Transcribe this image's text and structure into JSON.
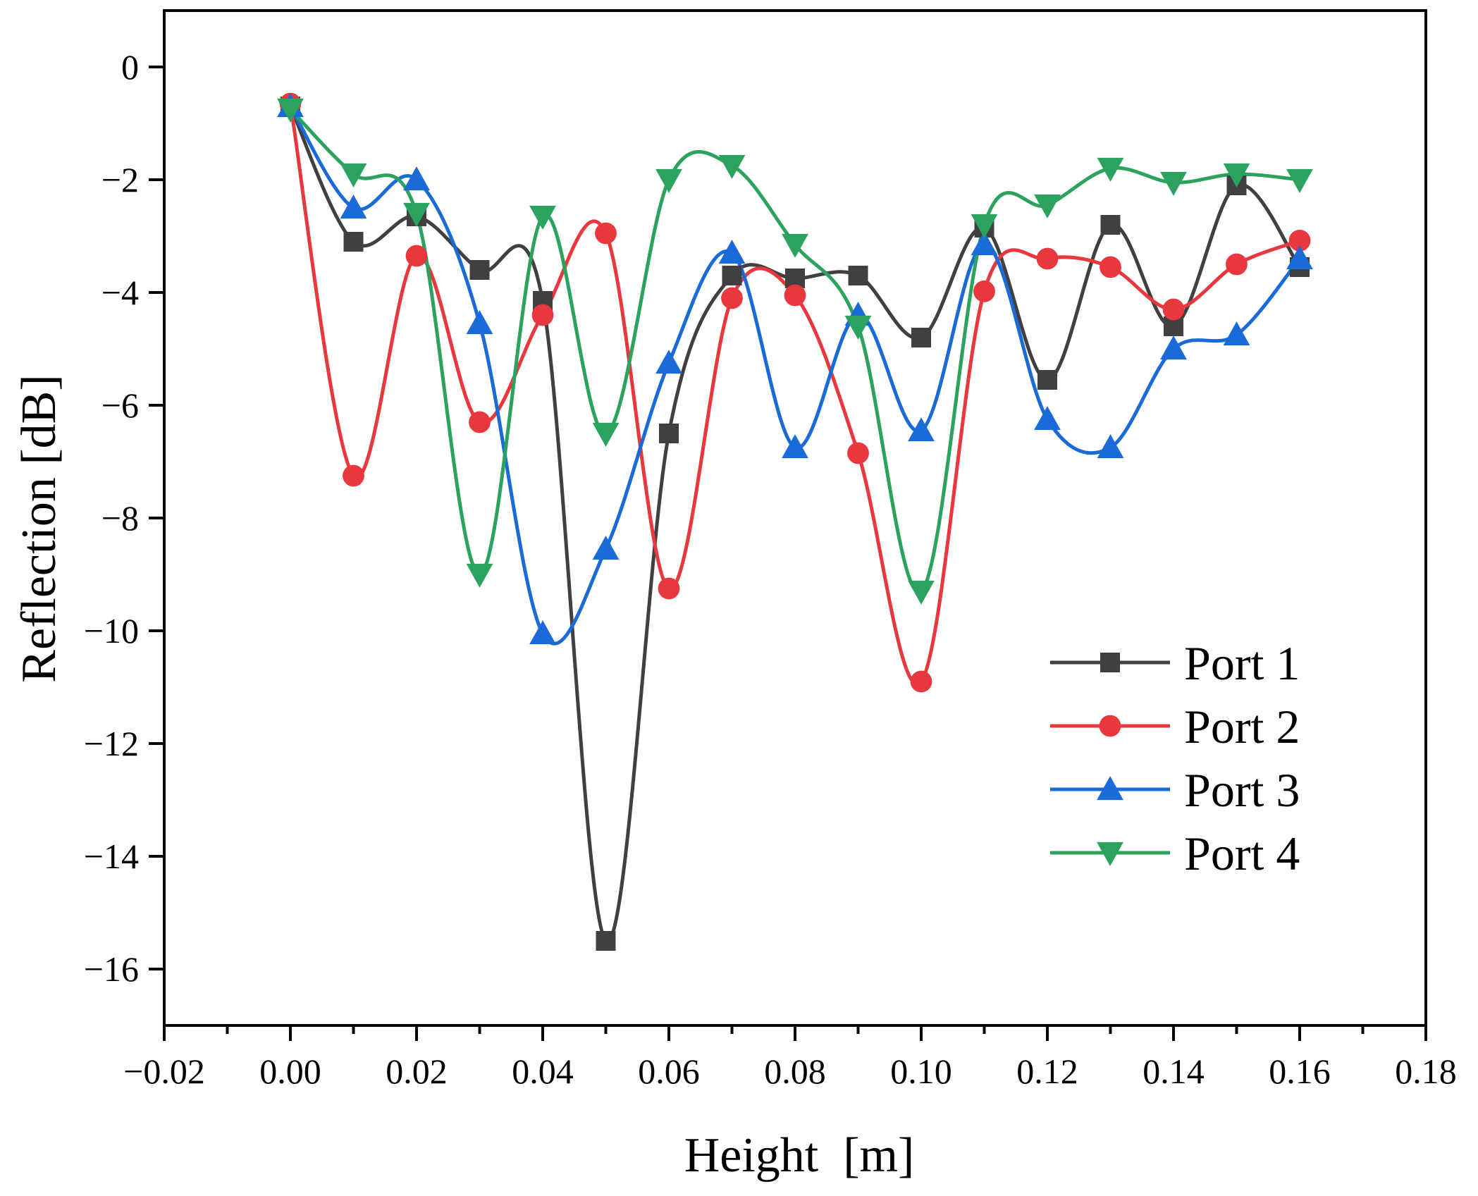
{
  "chart_data": {
    "type": "line",
    "title": "",
    "xlabel": "Height  [m]",
    "ylabel": "Reflection [dB]",
    "xlim": [
      -0.02,
      0.18
    ],
    "ylim": [
      -17,
      1
    ],
    "x_ticks": [
      -0.02,
      0.0,
      0.02,
      0.04,
      0.06,
      0.08,
      0.1,
      0.12,
      0.14,
      0.16,
      0.18
    ],
    "x_tick_labels": [
      "−0.02",
      "0.00",
      "0.02",
      "0.04",
      "0.06",
      "0.08",
      "0.10",
      "0.12",
      "0.14",
      "0.16",
      "0.18"
    ],
    "y_ticks": [
      0,
      -2,
      -4,
      -6,
      -8,
      -10,
      -12,
      -14,
      -16
    ],
    "y_tick_labels": [
      "0",
      "−2",
      "−4",
      "−6",
      "−8",
      "−10",
      "−12",
      "−14",
      "−16"
    ],
    "grid": false,
    "legend_position": "bottom-right",
    "x": [
      0.0,
      0.01,
      0.02,
      0.03,
      0.04,
      0.05,
      0.06,
      0.07,
      0.08,
      0.09,
      0.1,
      0.11,
      0.12,
      0.13,
      0.14,
      0.15,
      0.16
    ],
    "series": [
      {
        "name": "Port 1",
        "color": "#404040",
        "marker": "square",
        "values": [
          -0.7,
          -3.1,
          -2.65,
          -3.6,
          -4.15,
          -15.5,
          -6.5,
          -3.7,
          -3.75,
          -3.7,
          -4.8,
          -2.85,
          -5.55,
          -2.8,
          -4.6,
          -2.1,
          -3.55
        ]
      },
      {
        "name": "Port 2",
        "color": "#e8373d",
        "marker": "circle",
        "values": [
          -0.65,
          -7.25,
          -3.35,
          -6.3,
          -4.4,
          -2.95,
          -9.25,
          -4.1,
          -4.05,
          -6.85,
          -10.9,
          -3.98,
          -3.4,
          -3.55,
          -4.3,
          -3.5,
          -3.08
        ]
      },
      {
        "name": "Port 3",
        "color": "#1a6ad8",
        "marker": "triangle-up",
        "values": [
          -0.7,
          -2.5,
          -2.0,
          -4.55,
          -10.05,
          -8.55,
          -5.25,
          -3.3,
          -6.75,
          -4.4,
          -6.45,
          -3.15,
          -6.25,
          -6.75,
          -5.0,
          -4.75,
          -3.4
        ]
      },
      {
        "name": "Port 4",
        "color": "#2ca25f",
        "marker": "triangle-down",
        "values": [
          -0.75,
          -1.9,
          -2.6,
          -9.0,
          -2.65,
          -6.5,
          -2.0,
          -1.75,
          -3.15,
          -4.6,
          -9.3,
          -2.8,
          -2.45,
          -1.8,
          -2.05,
          -1.9,
          -2.0
        ]
      }
    ]
  }
}
